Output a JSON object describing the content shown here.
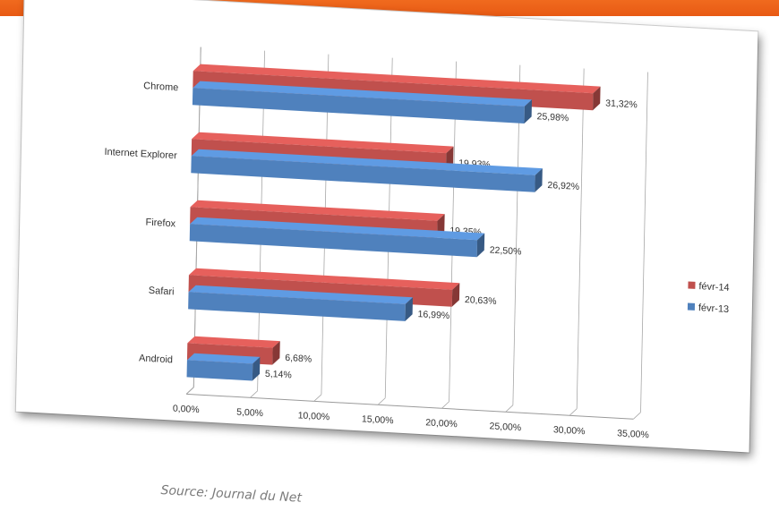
{
  "chart_data": {
    "type": "bar",
    "orientation": "horizontal",
    "categories": [
      "Chrome",
      "Internet Explorer",
      "Firefox",
      "Safari",
      "Android"
    ],
    "series": [
      {
        "name": "févr-14",
        "color": "#c0504d",
        "values": [
          31.32,
          19.93,
          19.35,
          20.63,
          6.68
        ],
        "labels": [
          "31,32%",
          "19,93%",
          "19,35%",
          "20,63%",
          "6,68%"
        ]
      },
      {
        "name": "févr-13",
        "color": "#4f81bd",
        "values": [
          25.98,
          26.92,
          22.5,
          16.99,
          5.14
        ],
        "labels": [
          "25,98%",
          "26,92%",
          "22,50%",
          "16,99%",
          "5,14%"
        ]
      }
    ],
    "xlim": [
      0,
      35
    ],
    "ticks": [
      0,
      5,
      10,
      15,
      20,
      25,
      30,
      35
    ],
    "tick_labels": [
      "0,00%",
      "5,00%",
      "10,00%",
      "15,00%",
      "20,00%",
      "25,00%",
      "30,00%",
      "35,00%"
    ],
    "grid": true,
    "legend_position": "right"
  },
  "source_text": "Source: Journal du Net"
}
